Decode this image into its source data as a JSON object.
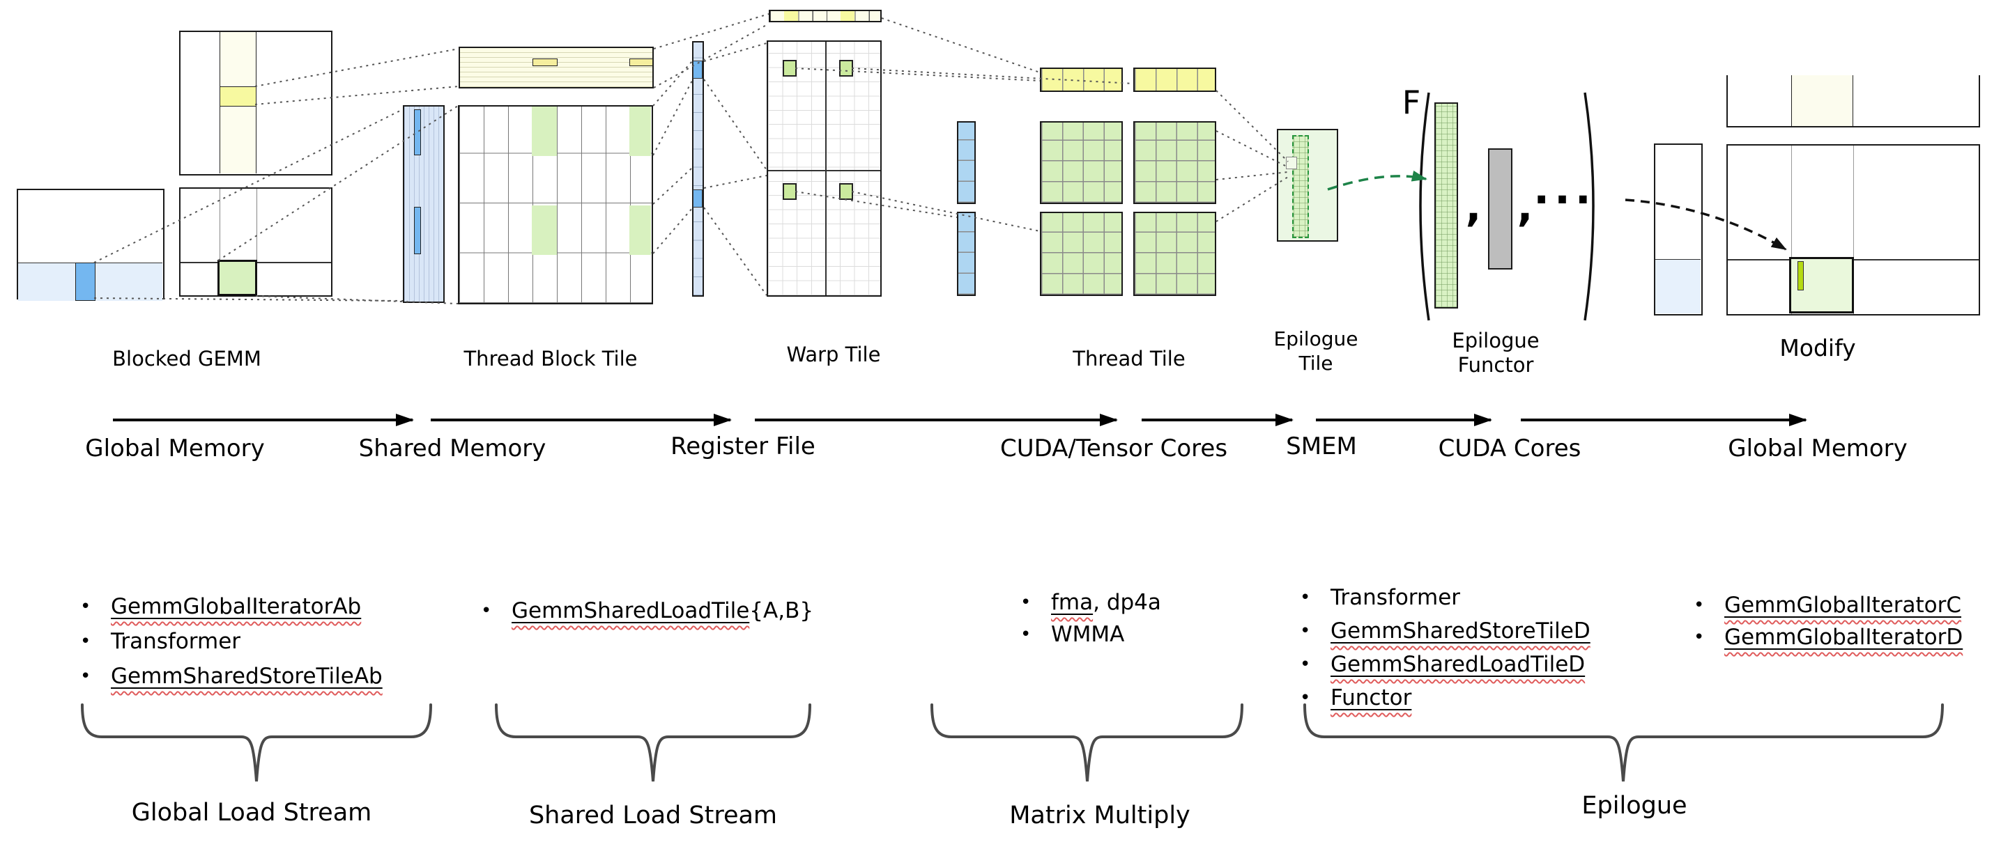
{
  "diagram": {
    "title_context": "GEMM hierarchical tiling data flow",
    "bullet_char": "•",
    "stage_labels": {
      "blocked_gemm": "Blocked GEMM",
      "thread_block_tile": "Thread Block Tile",
      "warp_tile": "Warp Tile",
      "thread_tile": "Thread Tile",
      "epilogue_tile_line1": "Epilogue",
      "epilogue_tile_line2": "Tile",
      "epilogue_functor_line1": "Epilogue",
      "epilogue_functor_line2": "Functor",
      "modify": "Modify"
    },
    "memory_labels": {
      "global_memory_left": "Global Memory",
      "shared_memory": "Shared Memory",
      "register_file": "Register File",
      "cuda_tensor_cores": "CUDA/Tensor Cores",
      "smem": "SMEM",
      "cuda_cores": "CUDA Cores",
      "global_memory_right": "Global Memory"
    },
    "functor": {
      "name": "F",
      "open_paren": "(",
      "comma1": ",",
      "comma2": ",",
      "ellipsis": "···",
      "close_paren": ")"
    },
    "bullet_lists": [
      {
        "id": "global-load-stream-classes",
        "items": [
          {
            "parts": [
              {
                "text": "GemmGlobalIteratorAb",
                "underlined": true
              }
            ]
          },
          {
            "parts": [
              {
                "text": "Transformer",
                "underlined": false
              }
            ]
          },
          {
            "parts": [
              {
                "text": "GemmSharedStoreTileAb",
                "underlined": true
              }
            ]
          }
        ]
      },
      {
        "id": "shared-load-stream-classes",
        "items": [
          {
            "parts": [
              {
                "text": "GemmSharedLoadTile",
                "underlined": true
              },
              {
                "text": "{A,B}",
                "underlined": false
              }
            ]
          }
        ]
      },
      {
        "id": "matrix-multiply-ops",
        "items": [
          {
            "parts": [
              {
                "text": "fma",
                "underlined": true
              },
              {
                "text": ", dp4a",
                "underlined": false
              }
            ]
          },
          {
            "parts": [
              {
                "text": "WMMA",
                "underlined": false
              }
            ]
          }
        ]
      },
      {
        "id": "epilogue-classes",
        "items": [
          {
            "parts": [
              {
                "text": "Transformer",
                "underlined": false
              }
            ]
          },
          {
            "parts": [
              {
                "text": "GemmSharedStoreTileD",
                "underlined": true
              }
            ]
          },
          {
            "parts": [
              {
                "text": "GemmSharedLoadTileD",
                "underlined": true
              }
            ]
          },
          {
            "parts": [
              {
                "text": "Functor",
                "underlined": true
              }
            ]
          }
        ]
      },
      {
        "id": "global-store-classes",
        "items": [
          {
            "parts": [
              {
                "text": "GemmGlobalIteratorC",
                "underlined": true
              }
            ]
          },
          {
            "parts": [
              {
                "text": "GemmGlobalIteratorD",
                "underlined": true
              }
            ]
          }
        ]
      }
    ],
    "brace_labels": {
      "global_load_stream": "Global Load Stream",
      "shared_load_stream": "Shared Load Stream",
      "matrix_multiply": "Matrix Multiply",
      "epilogue": "Epilogue"
    },
    "colors": {
      "accent_blue": "#74B7F0",
      "pale_blue": "#E4EFFB",
      "striped_blue_bg": "#D9E6F7",
      "pale_yellow": "#FCFCE6",
      "highlight_yellow": "#F7F9A0",
      "pale_green": "#D8F1BF",
      "thread_tile_green": "#D6EFBC",
      "modify_green": "#EAF8DC",
      "chartreuse": "#B5DB12",
      "gray_column": "#BDBDBD",
      "green_arrow": "#1D8348",
      "squiggle_red": "#E05C5C"
    }
  }
}
